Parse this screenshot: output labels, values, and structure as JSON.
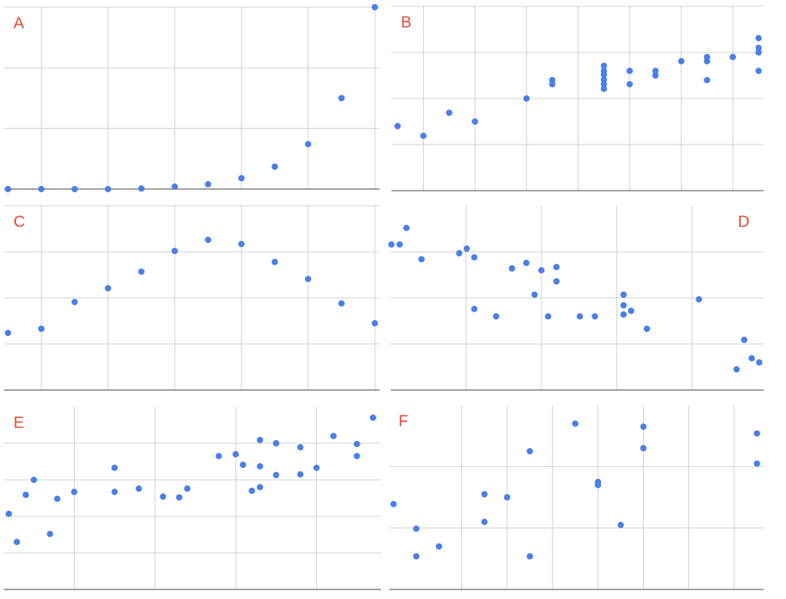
{
  "chart_data": [
    {
      "type": "scatter",
      "title": "A",
      "title_corner": "top-left",
      "color": "#4a80e6",
      "xlim": [
        -0.12,
        11.14
      ],
      "ylim": [
        0,
        3
      ],
      "xticks": [
        1,
        3,
        5,
        7,
        9,
        11
      ],
      "yticks": [
        0,
        1,
        2,
        3
      ],
      "x": [
        0,
        1,
        2,
        3,
        4,
        5,
        6,
        7,
        8,
        9,
        10,
        11
      ],
      "y": [
        0,
        0,
        0,
        0,
        0.01,
        0.04,
        0.08,
        0.18,
        0.37,
        0.74,
        1.5,
        3.0
      ]
    },
    {
      "type": "scatter",
      "title": "B",
      "title_corner": "top-left",
      "color": "#4a80e6",
      "xlim": [
        0.38,
        7.6
      ],
      "ylim": [
        0,
        4
      ],
      "xticks": [
        1,
        2,
        3,
        4,
        5,
        6,
        7
      ],
      "yticks": [
        0,
        1,
        2,
        3,
        4
      ],
      "x": [
        0.5,
        1,
        1.5,
        2,
        3,
        3.5,
        3.5,
        4.5,
        4.5,
        4.5,
        4.5,
        4.5,
        4.5,
        5,
        5,
        5.5,
        5.5,
        6,
        6.5,
        6.5,
        6.5,
        7,
        7.5,
        7.5,
        7.5,
        7.5
      ],
      "y": [
        1.4,
        1.19,
        1.69,
        1.5,
        2.0,
        2.4,
        2.31,
        2.71,
        2.6,
        2.52,
        2.41,
        2.31,
        2.21,
        2.6,
        2.31,
        2.6,
        2.5,
        2.81,
        2.9,
        2.81,
        2.4,
        2.9,
        3.31,
        3.1,
        3.0,
        2.6
      ]
    },
    {
      "type": "scatter",
      "title": "C",
      "title_corner": "top-left",
      "color": "#4a80e6",
      "xlim": [
        -0.12,
        11.14
      ],
      "ylim": [
        0,
        4
      ],
      "xticks": [
        1,
        3,
        5,
        7,
        9,
        11
      ],
      "yticks": [
        0,
        1,
        2,
        3,
        4
      ],
      "x": [
        0,
        1,
        2,
        3,
        4,
        5,
        6,
        7,
        8,
        9,
        10,
        11
      ],
      "y": [
        1.24,
        1.33,
        1.91,
        2.21,
        2.57,
        3.02,
        3.26,
        3.17,
        2.78,
        2.41,
        1.88,
        1.45
      ]
    },
    {
      "type": "scatter",
      "title": "D",
      "title_corner": "top-right",
      "color": "#4a80e6",
      "xlim": [
        0,
        4.95
      ],
      "ylim": [
        0,
        4
      ],
      "xticks": [
        1,
        2,
        3,
        4
      ],
      "yticks": [
        0,
        1,
        2,
        3
      ],
      "x": [
        0.01,
        0.12,
        0.21,
        0.41,
        0.91,
        1.01,
        1.11,
        1.11,
        1.4,
        1.61,
        1.8,
        1.91,
        2.0,
        2.09,
        2.2,
        2.2,
        2.51,
        2.71,
        3.09,
        3.09,
        3.09,
        3.19,
        3.4,
        4.09,
        4.59,
        4.69,
        4.79,
        4.89
      ],
      "y": [
        3.16,
        3.16,
        3.52,
        2.84,
        2.97,
        3.07,
        2.88,
        1.76,
        1.6,
        2.64,
        2.76,
        2.07,
        2.6,
        1.6,
        2.67,
        2.36,
        1.6,
        1.6,
        2.07,
        1.84,
        1.64,
        1.72,
        1.33,
        1.97,
        0.45,
        1.09,
        0.69,
        0.6
      ]
    },
    {
      "type": "scatter",
      "title": "E",
      "title_corner": "top-left",
      "color": "#4a80e6",
      "xlim": [
        0.13,
        4.8
      ],
      "ylim": [
        0,
        5
      ],
      "xticks": [
        1,
        2,
        3,
        4
      ],
      "yticks": [
        0,
        1,
        2,
        3,
        4
      ],
      "x": [
        0.19,
        0.29,
        0.4,
        0.5,
        0.7,
        0.79,
        1.0,
        1.5,
        1.5,
        1.8,
        2.1,
        2.3,
        2.4,
        2.79,
        3.0,
        3.09,
        3.2,
        3.3,
        3.3,
        3.3,
        3.5,
        3.5,
        3.8,
        3.8,
        4.0,
        4.21,
        4.5,
        4.5,
        4.7
      ],
      "y": [
        2.07,
        1.3,
        2.59,
        3.0,
        1.52,
        2.48,
        2.67,
        3.33,
        2.67,
        2.76,
        2.54,
        2.52,
        2.76,
        3.65,
        3.7,
        3.41,
        2.7,
        4.09,
        3.37,
        2.8,
        4.0,
        3.13,
        3.89,
        3.15,
        3.33,
        4.2,
        3.98,
        3.65,
        4.7
      ]
    },
    {
      "type": "scatter",
      "title": "F",
      "title_corner": "top-left",
      "color": "#4a80e6",
      "xlim": [
        -0.2,
        16.3
      ],
      "ylim": [
        0,
        3
      ],
      "xticks": [
        3,
        5,
        7,
        9,
        11,
        13,
        15
      ],
      "yticks": [
        0,
        1,
        2
      ],
      "x": [
        0,
        1,
        1,
        2,
        4,
        4,
        5,
        6,
        6,
        8,
        9,
        9,
        10,
        11,
        11,
        16,
        16
      ],
      "y": [
        1.39,
        0.99,
        0.54,
        0.7,
        1.55,
        1.1,
        1.5,
        2.25,
        0.54,
        2.7,
        1.75,
        1.7,
        1.05,
        2.65,
        2.3,
        2.54,
        2.05
      ]
    }
  ]
}
